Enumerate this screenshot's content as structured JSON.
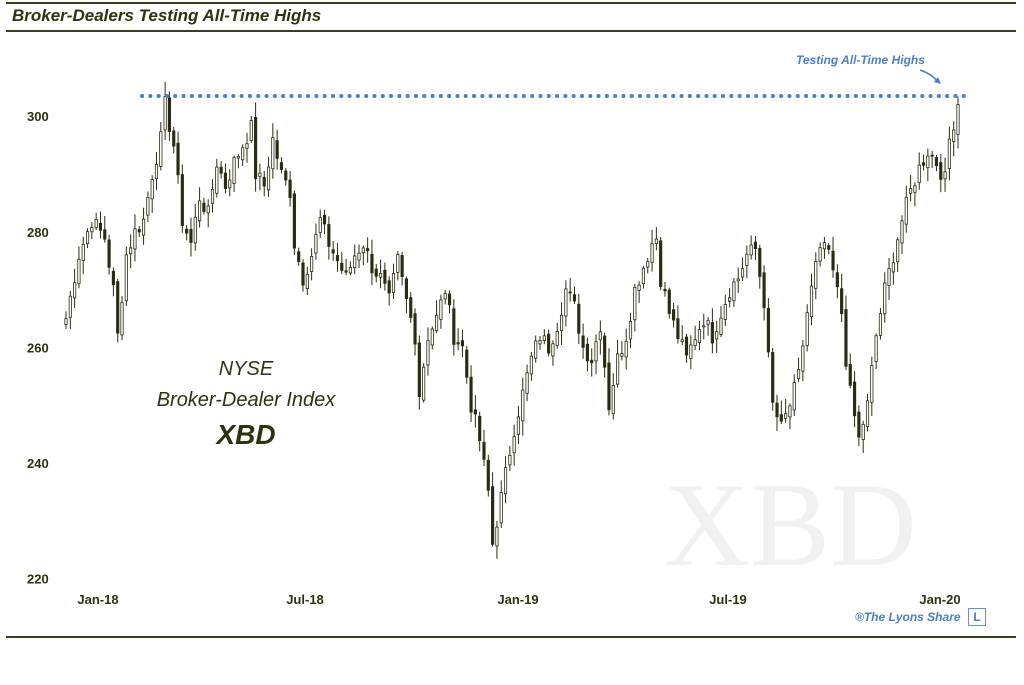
{
  "header": {
    "title": "Broker-Dealers Testing All-Time Highs"
  },
  "chart_data": {
    "type": "candlestick",
    "title": "Broker-Dealers Testing All-Time Highs",
    "watermark": "XBD",
    "center_label": [
      "NYSE",
      "Broker-Dealer Index",
      "XBD"
    ],
    "ylim": [
      218,
      308
    ],
    "yticks": [
      220,
      240,
      260,
      280,
      300
    ],
    "x_tick_labels": [
      "Jan-18",
      "Jul-18",
      "Jan-19",
      "Jul-19",
      "Jan-20"
    ],
    "resistance_level": 303.5,
    "annotation": "Testing All-Time Highs",
    "anchors": [
      [
        0,
        265
      ],
      [
        3,
        276
      ],
      [
        6,
        282
      ],
      [
        9,
        279
      ],
      [
        11,
        270
      ],
      [
        12,
        262
      ],
      [
        14,
        276
      ],
      [
        16,
        280
      ],
      [
        18,
        282
      ],
      [
        20,
        290
      ],
      [
        22,
        296
      ],
      [
        23,
        302
      ],
      [
        25,
        295
      ],
      [
        27,
        282
      ],
      [
        29,
        278
      ],
      [
        31,
        286
      ],
      [
        33,
        283
      ],
      [
        35,
        292
      ],
      [
        37,
        288
      ],
      [
        39,
        292
      ],
      [
        41,
        295
      ],
      [
        43,
        298
      ],
      [
        44,
        290
      ],
      [
        46,
        288
      ],
      [
        48,
        296
      ],
      [
        50,
        290
      ],
      [
        52,
        287
      ],
      [
        53,
        278
      ],
      [
        55,
        272
      ],
      [
        57,
        276
      ],
      [
        59,
        282
      ],
      [
        61,
        278
      ],
      [
        63,
        275
      ],
      [
        65,
        272
      ],
      [
        67,
        276
      ],
      [
        69,
        278
      ],
      [
        71,
        274
      ],
      [
        73,
        272
      ],
      [
        75,
        268
      ],
      [
        77,
        275
      ],
      [
        79,
        268
      ],
      [
        81,
        262
      ],
      [
        82,
        252
      ],
      [
        84,
        262
      ],
      [
        86,
        265
      ],
      [
        88,
        270
      ],
      [
        90,
        262
      ],
      [
        92,
        260
      ],
      [
        94,
        250
      ],
      [
        96,
        244
      ],
      [
        98,
        235
      ],
      [
        99,
        226
      ],
      [
        100,
        230
      ],
      [
        102,
        238
      ],
      [
        104,
        246
      ],
      [
        106,
        252
      ],
      [
        108,
        258
      ],
      [
        110,
        262
      ],
      [
        112,
        260
      ],
      [
        114,
        264
      ],
      [
        116,
        270
      ],
      [
        118,
        267
      ],
      [
        120,
        260
      ],
      [
        122,
        258
      ],
      [
        124,
        264
      ],
      [
        126,
        250
      ],
      [
        128,
        258
      ],
      [
        130,
        262
      ],
      [
        132,
        270
      ],
      [
        134,
        274
      ],
      [
        136,
        278
      ],
      [
        137,
        279
      ],
      [
        138,
        272
      ],
      [
        140,
        266
      ],
      [
        142,
        262
      ],
      [
        144,
        258
      ],
      [
        146,
        262
      ],
      [
        148,
        265
      ],
      [
        150,
        262
      ],
      [
        152,
        266
      ],
      [
        154,
        270
      ],
      [
        156,
        272
      ],
      [
        158,
        276
      ],
      [
        160,
        277
      ],
      [
        162,
        268
      ],
      [
        163,
        258
      ],
      [
        164,
        250
      ],
      [
        166,
        246
      ],
      [
        168,
        250
      ],
      [
        170,
        255
      ],
      [
        172,
        266
      ],
      [
        174,
        274
      ],
      [
        176,
        278
      ],
      [
        178,
        273
      ],
      [
        180,
        266
      ],
      [
        181,
        258
      ],
      [
        182,
        252
      ],
      [
        184,
        244
      ],
      [
        186,
        250
      ],
      [
        188,
        262
      ],
      [
        190,
        270
      ],
      [
        192,
        276
      ],
      [
        194,
        282
      ],
      [
        196,
        287
      ],
      [
        198,
        291
      ],
      [
        200,
        294
      ],
      [
        202,
        292
      ],
      [
        204,
        289
      ],
      [
        205,
        296
      ],
      [
        207,
        302
      ]
    ],
    "total_days": 208
  },
  "footer": {
    "copyright": "®The Lyons Share",
    "logo_letter": "L"
  }
}
